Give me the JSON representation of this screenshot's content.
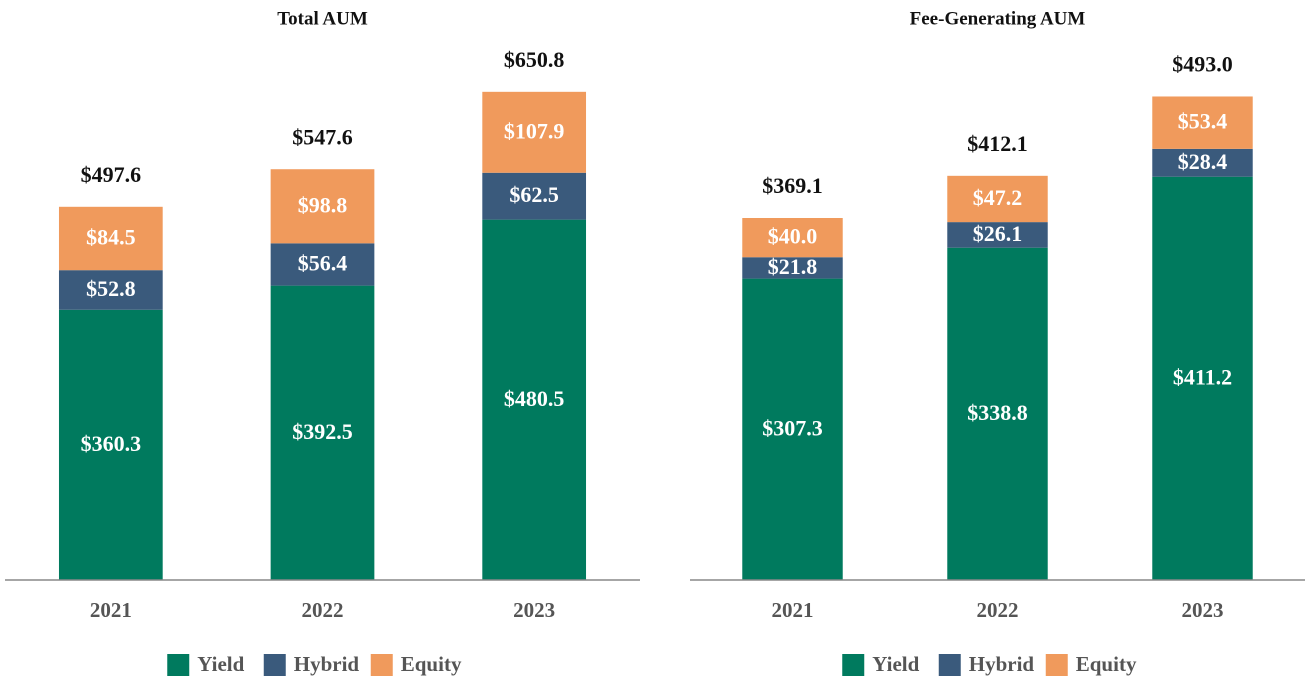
{
  "chart_data": [
    {
      "type": "stacked_bar",
      "title": "Total AUM",
      "categories": [
        "2021",
        "2022",
        "2023"
      ],
      "series": [
        {
          "name": "Yield",
          "color": "#007a5e",
          "values": [
            360.3,
            392.5,
            480.5
          ],
          "value_labels": [
            "$360.3",
            "$392.5",
            "$480.5"
          ]
        },
        {
          "name": "Hybrid",
          "color": "#3a5a7c",
          "values": [
            52.8,
            56.4,
            62.5
          ],
          "value_labels": [
            "$52.8",
            "$56.4",
            "$62.5"
          ]
        },
        {
          "name": "Equity",
          "color": "#f09a5c",
          "values": [
            84.5,
            98.8,
            107.9
          ],
          "value_labels": [
            "$84.5",
            "$98.8",
            "$107.9"
          ]
        }
      ],
      "totals": [
        497.6,
        547.6,
        650.8
      ],
      "total_labels": [
        "$497.6",
        "$547.6",
        "$650.8"
      ],
      "ylim": [
        0,
        680
      ]
    },
    {
      "type": "stacked_bar",
      "title": "Fee-Generating AUM",
      "categories": [
        "2021",
        "2022",
        "2023"
      ],
      "series": [
        {
          "name": "Yield",
          "color": "#007a5e",
          "values": [
            307.3,
            338.8,
            411.2
          ],
          "value_labels": [
            "$307.3",
            "$338.8",
            "$411.2"
          ]
        },
        {
          "name": "Hybrid",
          "color": "#3a5a7c",
          "values": [
            21.8,
            26.1,
            28.4
          ],
          "value_labels": [
            "$21.8",
            "$26.1",
            "$28.4"
          ]
        },
        {
          "name": "Equity",
          "color": "#f09a5c",
          "values": [
            40.0,
            47.2,
            53.4
          ],
          "value_labels": [
            "$40.0",
            "$47.2",
            "$53.4"
          ]
        }
      ],
      "totals": [
        369.1,
        412.1,
        493.0
      ],
      "total_labels": [
        "$369.1",
        "$412.1",
        "$493.0"
      ],
      "ylim": [
        0,
        520
      ]
    }
  ]
}
